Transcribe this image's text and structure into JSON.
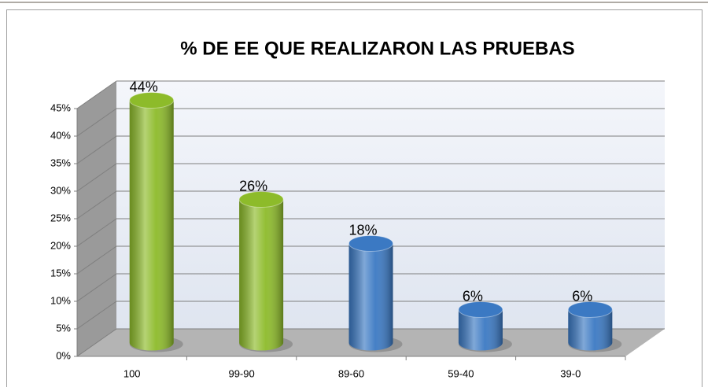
{
  "chart_data": {
    "type": "bar",
    "title": "% DE EE QUE REALIZARON LAS PRUEBAS",
    "categories": [
      "100",
      "99-90",
      "89-60",
      "59-40",
      "39-0"
    ],
    "values": [
      44,
      26,
      18,
      6,
      6
    ],
    "value_labels": [
      "44%",
      "26%",
      "18%",
      "6%",
      "6%"
    ],
    "colors": [
      "#8dbb2a",
      "#8dbb2a",
      "#3b79c3",
      "#3b79c3",
      "#3b79c3"
    ],
    "ylim": [
      0,
      45
    ],
    "yticks": [
      {
        "value": 0,
        "label": "0%"
      },
      {
        "value": 5,
        "label": "5%"
      },
      {
        "value": 10,
        "label": "10%"
      },
      {
        "value": 15,
        "label": "15%"
      },
      {
        "value": 20,
        "label": "20%"
      },
      {
        "value": 25,
        "label": "25%"
      },
      {
        "value": 30,
        "label": "30%"
      },
      {
        "value": 35,
        "label": "35%"
      },
      {
        "value": 40,
        "label": "40%"
      },
      {
        "value": 45,
        "label": "45%"
      }
    ],
    "grid": true
  }
}
